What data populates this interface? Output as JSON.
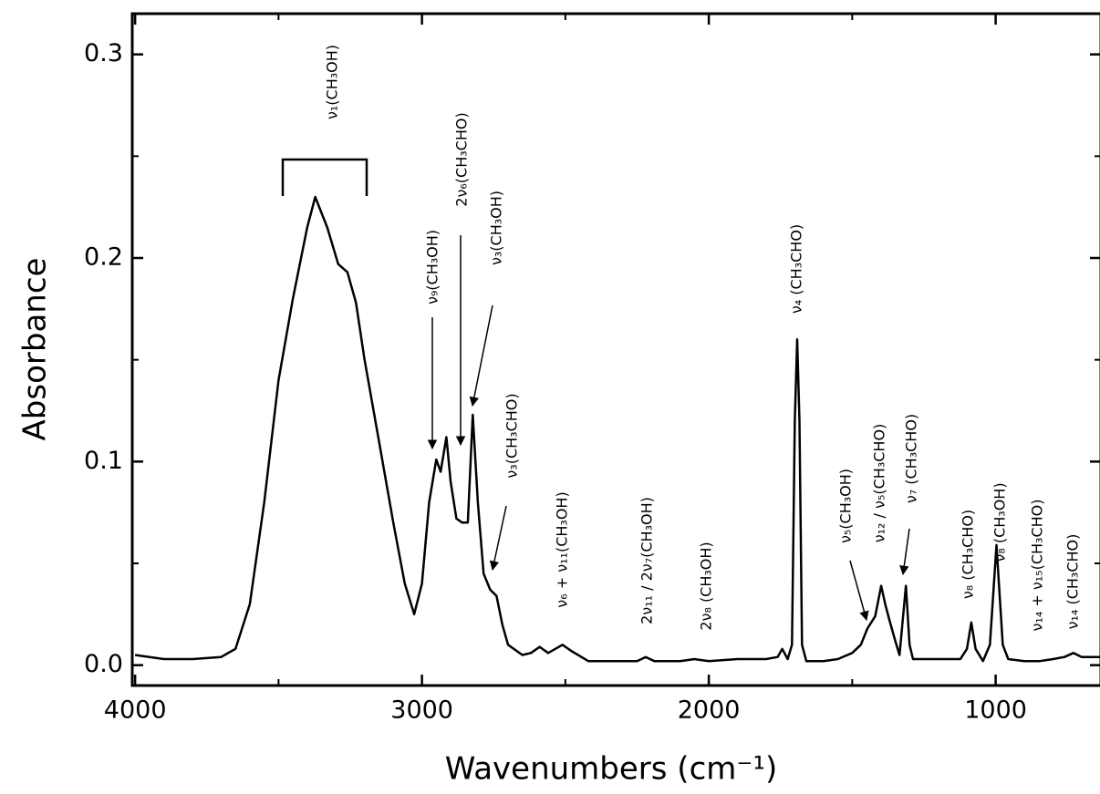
{
  "chart_data": {
    "type": "line",
    "x_label": "Wavenumbers (cm⁻¹)",
    "y_label": "Absorbance",
    "xlim": [
      4010,
      633
    ],
    "ylim": [
      -0.01,
      0.32
    ],
    "xticks": [
      4000,
      3000,
      2000,
      1000
    ],
    "yticks": [
      {
        "value": 0,
        "label": "0.0"
      },
      0.1,
      0.2,
      0.3
    ],
    "xminor_ticks": [
      3500,
      2500,
      1500
    ],
    "yminor_ticks": [
      0.05,
      0.15,
      0.25
    ],
    "color": "#000000",
    "x": [
      4000,
      3900,
      3800,
      3700,
      3650,
      3600,
      3550,
      3500,
      3450,
      3400,
      3372,
      3330,
      3292,
      3260,
      3230,
      3200,
      3150,
      3100,
      3060,
      3027,
      3000,
      2975,
      2950,
      2935,
      2915,
      2900,
      2880,
      2860,
      2840,
      2823,
      2805,
      2785,
      2762,
      2740,
      2720,
      2700,
      2650,
      2620,
      2590,
      2560,
      2510,
      2480,
      2420,
      2350,
      2250,
      2220,
      2190,
      2100,
      2050,
      2000,
      1900,
      1800,
      1760,
      1744,
      1725,
      1710,
      1700,
      1692,
      1684,
      1675,
      1660,
      1600,
      1550,
      1500,
      1470,
      1447,
      1420,
      1399,
      1385,
      1370,
      1350,
      1335,
      1313,
      1300,
      1288,
      1200,
      1123,
      1100,
      1085,
      1070,
      1044,
      1020,
      997,
      975,
      956,
      900,
      846,
      800,
      760,
      729,
      700,
      633
    ],
    "values": [
      0.005,
      0.003,
      0.003,
      0.004,
      0.008,
      0.03,
      0.08,
      0.14,
      0.18,
      0.215,
      0.23,
      0.215,
      0.197,
      0.193,
      0.178,
      0.15,
      0.11,
      0.07,
      0.04,
      0.025,
      0.04,
      0.08,
      0.101,
      0.095,
      0.112,
      0.09,
      0.072,
      0.07,
      0.07,
      0.123,
      0.08,
      0.045,
      0.037,
      0.034,
      0.02,
      0.01,
      0.005,
      0.006,
      0.009,
      0.006,
      0.01,
      0.007,
      0.002,
      0.002,
      0.002,
      0.004,
      0.002,
      0.002,
      0.003,
      0.002,
      0.003,
      0.003,
      0.004,
      0.008,
      0.003,
      0.01,
      0.12,
      0.16,
      0.12,
      0.01,
      0.002,
      0.002,
      0.003,
      0.006,
      0.01,
      0.018,
      0.024,
      0.039,
      0.03,
      0.022,
      0.012,
      0.005,
      0.039,
      0.01,
      0.003,
      0.003,
      0.003,
      0.008,
      0.021,
      0.008,
      0.002,
      0.01,
      0.059,
      0.01,
      0.003,
      0.002,
      0.002,
      0.003,
      0.004,
      0.006,
      0.004,
      0.004
    ],
    "annotations": [
      "ν₁(CH₃OH)",
      "ν₉(CH₃OH)",
      "2ν₆(CH₃CHO)",
      "ν₃(CH₃OH)",
      "ν₃(CH₃CHO)",
      "ν₆ + ν₁₁(CH₃OH)",
      "2ν₁₁ / 2ν₇(CH₃OH)",
      "2ν₈ (CH₃OH)",
      "ν₄ (CH₃CHO)",
      "ν₅(CH₃OH)",
      "ν₁₂ / ν₅(CH₃CHO)",
      "ν₇ (CH₃CHO)",
      "ν₈ (CH₃CHO)",
      "ν₈ (CH₃OH)",
      "ν₁₄ + ν₁₅(CH₃CHO)",
      "ν₁₄ (CH₃CHO)"
    ]
  }
}
